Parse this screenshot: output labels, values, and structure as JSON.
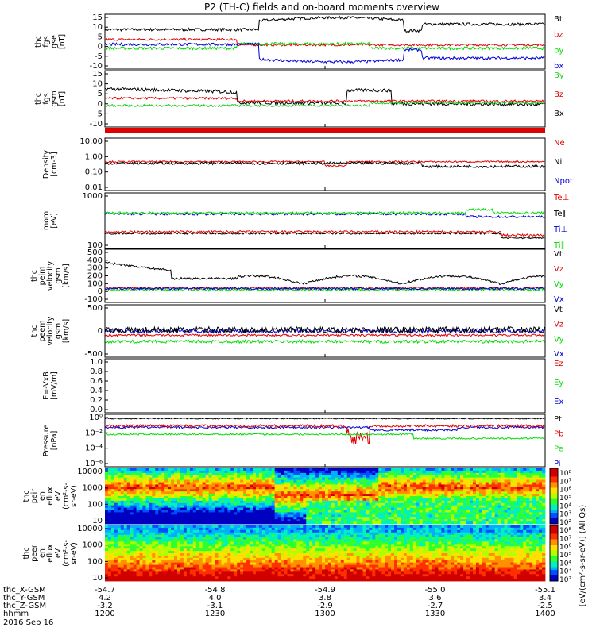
{
  "title": "P2 (TH-C) fields and on-board moments overview",
  "colors": {
    "black": "#000000",
    "red": "#e00000",
    "green": "#00dd00",
    "blue": "#0000d8",
    "lime": "#22cc22"
  },
  "chart_data": [
    {
      "type": "line",
      "ylabel": [
        "thc",
        "fgs",
        "gse",
        "[nT]"
      ],
      "ticks": [
        "15",
        "10",
        "5",
        "0",
        "-5",
        "-10"
      ],
      "ylim": [
        -12,
        16
      ],
      "legend": [
        {
          "text": "Bt",
          "color": "black"
        },
        {
          "text": "bz",
          "color": "red"
        },
        {
          "text": "by",
          "color": "green"
        },
        {
          "text": "bx",
          "color": "blue"
        }
      ]
    },
    {
      "type": "line",
      "ylabel": [
        "thc",
        "fgs",
        "gsm",
        "[nT]"
      ],
      "ticks": [
        "15",
        "10",
        "5",
        "0",
        "-5",
        "-10"
      ],
      "ylim": [
        -14,
        16
      ],
      "legend": [
        {
          "text": "By",
          "color": "lime"
        },
        {
          "text": "Bz",
          "color": "red"
        },
        {
          "text": "Bx",
          "color": "black"
        }
      ]
    },
    {
      "type": "line",
      "ylabel": [
        "Density",
        "[cm-3]"
      ],
      "ticks": [
        "10.00",
        "1.00",
        "0.10",
        "0.01"
      ],
      "log": true,
      "legend": [
        {
          "text": "Ne",
          "color": "red"
        },
        {
          "text": "Ni",
          "color": "black"
        },
        {
          "text": "Npot",
          "color": "blue"
        }
      ]
    },
    {
      "type": "line",
      "ylabel": [
        "mom",
        "[eV]"
      ],
      "ticks": [
        "1000",
        "100"
      ],
      "log": true,
      "legend": [
        {
          "text": "Te⊥",
          "color": "red"
        },
        {
          "text": "Te∥",
          "color": "black"
        },
        {
          "text": "Ti⊥",
          "color": "blue"
        },
        {
          "text": "Ti∥",
          "color": "green"
        }
      ]
    },
    {
      "type": "line",
      "ylabel": [
        "thc",
        "peim",
        "velocity",
        "gsm",
        "[km/s]"
      ],
      "ticks": [
        "500",
        "400",
        "300",
        "200",
        "100",
        "0",
        "-100"
      ],
      "ylim": [
        -150,
        500
      ],
      "legend": [
        {
          "text": "Vt",
          "color": "black"
        },
        {
          "text": "Vz",
          "color": "red"
        },
        {
          "text": "Vy",
          "color": "green"
        },
        {
          "text": "Vx",
          "color": "blue"
        }
      ]
    },
    {
      "type": "line",
      "ylabel": [
        "thc",
        "peem",
        "velocity",
        "gsm",
        "[km/s]"
      ],
      "ticks": [
        "500",
        "0",
        "-500"
      ],
      "ylim": [
        -500,
        800
      ],
      "legend": [
        {
          "text": "Vt",
          "color": "black"
        },
        {
          "text": "Vz",
          "color": "red"
        },
        {
          "text": "Vy",
          "color": "green"
        },
        {
          "text": "Vx",
          "color": "blue"
        }
      ]
    },
    {
      "type": "line",
      "ylabel": [
        "E=-VxB",
        "[mV/m]"
      ],
      "ticks": [
        "1.0",
        "0.8",
        "0.6",
        "0.4",
        "0.2",
        "0.0"
      ],
      "ylim": [
        0,
        1
      ],
      "legend": [
        {
          "text": "Ez",
          "color": "red"
        },
        {
          "text": "Ey",
          "color": "green"
        },
        {
          "text": "Ex",
          "color": "blue"
        }
      ]
    },
    {
      "type": "line",
      "ylabel": [
        "Pressure",
        "[nPa]"
      ],
      "ticks": [
        "10⁰",
        "10⁻²",
        "10⁻⁴",
        "10⁻⁶"
      ],
      "log": true,
      "legend": [
        {
          "text": "Pt",
          "color": "black"
        },
        {
          "text": "Pb",
          "color": "red"
        },
        {
          "text": "Pe",
          "color": "green"
        },
        {
          "text": "Pi",
          "color": "blue"
        }
      ]
    },
    {
      "type": "heatmap",
      "ylabel": [
        "thc",
        "peir",
        "en",
        "eflux",
        "eV",
        "(cm²-s-",
        "sr-eV)"
      ],
      "ticks": [
        "10000",
        "1000",
        "100",
        "10"
      ],
      "log": true,
      "colorbar": [
        "10⁸",
        "10⁷",
        "10⁶",
        "10⁵",
        "10⁴",
        "10³",
        "10²"
      ]
    },
    {
      "type": "heatmap",
      "ylabel": [
        "thc",
        "peer",
        "en",
        "eflux",
        "eV",
        "(cm²-s-",
        "sr-eV)"
      ],
      "ticks": [
        "10000",
        "1000",
        "100",
        "10"
      ],
      "log": true,
      "colorbar": [
        "10⁸",
        "10⁷",
        "10⁶",
        "10⁵",
        "10⁴",
        "10³",
        "10²"
      ]
    }
  ],
  "colorbar_label": "[eV/(cm²-s-sr-eV)] (All Qs)",
  "xaxis": {
    "rows": [
      {
        "label": "thc_X-GSM",
        "values": [
          "-54.7",
          "-54.8",
          "-54.9",
          "-55.0",
          "-55.1"
        ]
      },
      {
        "label": "thc_Y-GSM",
        "values": [
          "4.2",
          "4.0",
          "3.8",
          "3.6",
          "3.4"
        ]
      },
      {
        "label": "thc_Z-GSM",
        "values": [
          "-3.2",
          "-3.1",
          "-2.9",
          "-2.7",
          "-2.5"
        ]
      },
      {
        "label": "hhmm",
        "values": [
          "1200",
          "1230",
          "1300",
          "1330",
          "1400"
        ]
      }
    ],
    "date": "2016 Sep 16"
  }
}
